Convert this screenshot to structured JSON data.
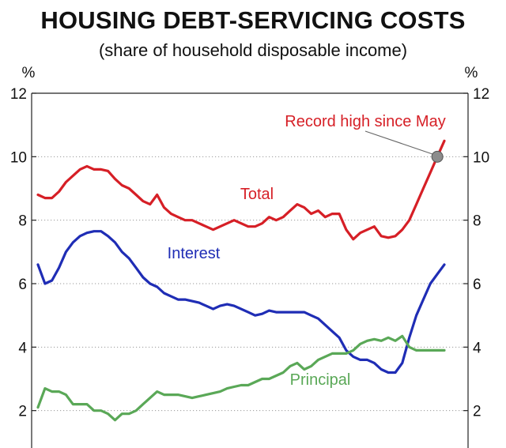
{
  "chart_data": {
    "type": "line",
    "title": "HOUSING DEBT-SERVICING COSTS",
    "subtitle": "(share of household disposable income)",
    "y_unit_left": "%",
    "y_unit_right": "%",
    "ylim": [
      0,
      12
    ],
    "y_ticks": [
      "2",
      "4",
      "6",
      "8",
      "10",
      "12"
    ],
    "y_tick_values": [
      2,
      4,
      6,
      8,
      10,
      12
    ],
    "grid": "horizontal dotted",
    "annotation": {
      "text": "Record high since May",
      "color": "#d61f26"
    },
    "series": [
      {
        "name": "Total",
        "color": "#d61f26",
        "values": [
          8.8,
          8.7,
          8.7,
          8.9,
          9.2,
          9.4,
          9.6,
          9.7,
          9.6,
          9.6,
          9.55,
          9.3,
          9.1,
          9.0,
          8.8,
          8.6,
          8.5,
          8.8,
          8.4,
          8.2,
          8.1,
          8.0,
          8.0,
          7.9,
          7.8,
          7.7,
          7.8,
          7.9,
          8.0,
          7.9,
          7.8,
          7.8,
          7.9,
          8.1,
          8.0,
          8.1,
          8.3,
          8.5,
          8.4,
          8.2,
          8.3,
          8.1,
          8.2,
          8.2,
          7.7,
          7.4,
          7.6,
          7.7,
          7.8,
          7.5,
          7.45,
          7.5,
          7.7,
          8.0,
          8.5,
          9.0,
          9.5,
          10.0,
          10.5
        ]
      },
      {
        "name": "Interest",
        "color": "#1f2db5",
        "values": [
          6.6,
          6.0,
          6.1,
          6.5,
          7.0,
          7.3,
          7.5,
          7.6,
          7.65,
          7.65,
          7.5,
          7.3,
          7.0,
          6.8,
          6.5,
          6.2,
          6.0,
          5.9,
          5.7,
          5.6,
          5.5,
          5.5,
          5.45,
          5.4,
          5.3,
          5.2,
          5.3,
          5.35,
          5.3,
          5.2,
          5.1,
          5.0,
          5.05,
          5.15,
          5.1,
          5.1,
          5.1,
          5.1,
          5.1,
          5.0,
          4.9,
          4.7,
          4.5,
          4.3,
          3.9,
          3.7,
          3.6,
          3.6,
          3.5,
          3.3,
          3.2,
          3.2,
          3.5,
          4.3,
          5.0,
          5.5,
          6.0,
          6.3,
          6.6
        ]
      },
      {
        "name": "Principal",
        "color": "#5aa857",
        "values": [
          2.1,
          2.7,
          2.6,
          2.6,
          2.5,
          2.2,
          2.2,
          2.2,
          2.0,
          2.0,
          1.9,
          1.7,
          1.9,
          1.9,
          2.0,
          2.2,
          2.4,
          2.6,
          2.5,
          2.5,
          2.5,
          2.45,
          2.4,
          2.45,
          2.5,
          2.55,
          2.6,
          2.7,
          2.75,
          2.8,
          2.8,
          2.9,
          3.0,
          3.0,
          3.1,
          3.2,
          3.4,
          3.5,
          3.3,
          3.4,
          3.6,
          3.7,
          3.8,
          3.8,
          3.8,
          3.9,
          4.1,
          4.2,
          4.25,
          4.2,
          4.3,
          4.2,
          4.35,
          4.0,
          3.9,
          3.9,
          3.9,
          3.9,
          3.9
        ]
      }
    ]
  }
}
